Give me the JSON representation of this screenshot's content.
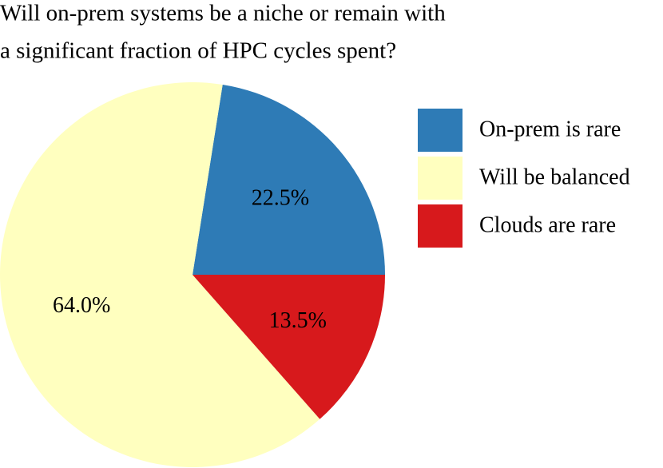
{
  "chart_data": {
    "type": "pie",
    "title": [
      "Will on-prem systems be a niche or remain with",
      "a significant fraction of HPC cycles spent?"
    ],
    "categories": [
      "On-prem is rare",
      "Will be balanced",
      "Clouds are rare"
    ],
    "values": [
      22.5,
      64.0,
      13.5
    ],
    "value_labels": [
      "22.5%",
      "64.0%",
      "13.5%"
    ],
    "colors": [
      "#2e7bb6",
      "#ffffbf",
      "#d7191c"
    ],
    "legend": "right"
  }
}
